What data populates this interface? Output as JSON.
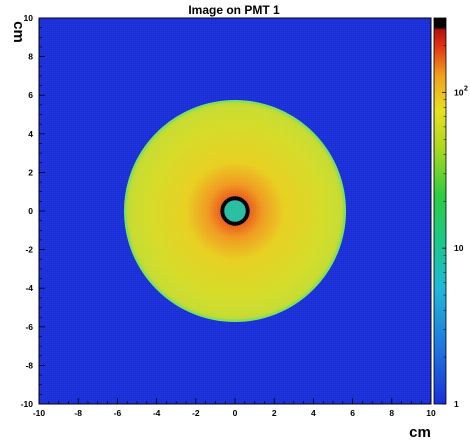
{
  "chart_data": {
    "type": "heatmap",
    "title": "Image on PMT 1",
    "xlabel": "cm",
    "ylabel": "cm",
    "xlim": [
      -10,
      10
    ],
    "ylim": [
      -10,
      10
    ],
    "x_ticks": [
      -10,
      -8,
      -6,
      -4,
      -2,
      0,
      2,
      4,
      6,
      8,
      10
    ],
    "y_ticks": [
      -10,
      -8,
      -6,
      -4,
      -2,
      0,
      2,
      4,
      6,
      8,
      10
    ],
    "x_tick_labels": [
      "-10",
      "-8",
      "-6",
      "-4",
      "-2",
      "0",
      "2",
      "4",
      "6",
      "8",
      "10"
    ],
    "y_tick_labels": [
      "-10",
      "-8",
      "-6",
      "-4",
      "-2",
      "0",
      "2",
      "4",
      "6",
      "8",
      "10"
    ],
    "z_scale": "log",
    "z_range": [
      1,
      300
    ],
    "colorbar_ticks": [
      {
        "value": 1,
        "label": "1",
        "sup": ""
      },
      {
        "value": 10,
        "label": "10",
        "sup": ""
      },
      {
        "value": 100,
        "label": "10",
        "sup": "2"
      }
    ],
    "features": {
      "background_level": 1,
      "disk_radius_cm": 5.6,
      "disk_edge_level": 10,
      "center_peak_level": 300,
      "center_hole_radius_cm": 0.55,
      "center_hole_level": 12,
      "ring_radius_cm": 0.75
    },
    "colors": {
      "background": "#1a2fd8",
      "disk_edge": "#7ee05a",
      "center_hole": "#27bfa0",
      "ring": "#000000"
    }
  }
}
